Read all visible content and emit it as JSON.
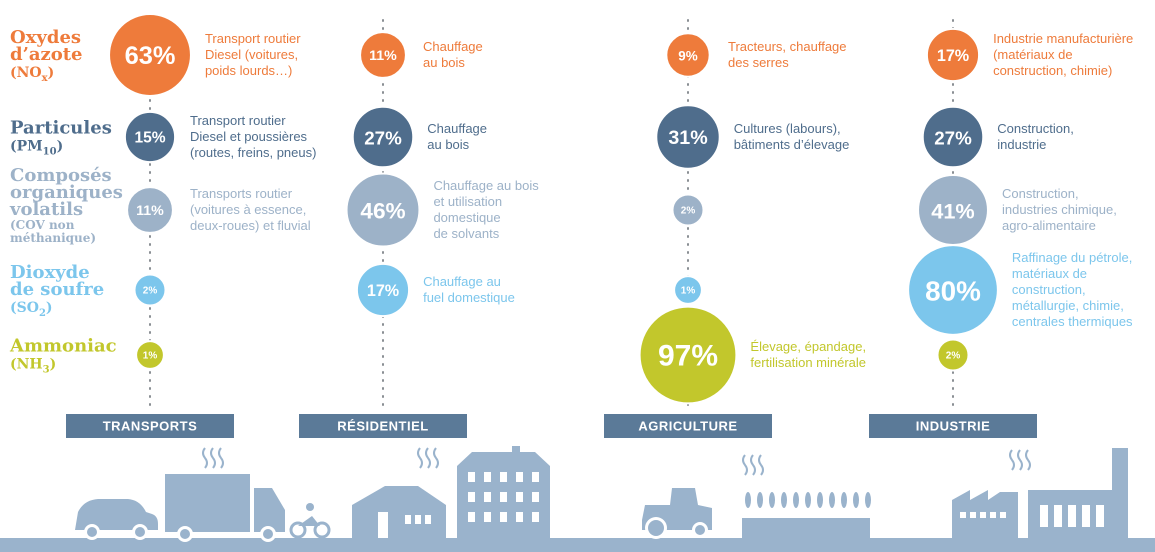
{
  "rows": [
    {
      "name_lines": [
        "Oxydes",
        "d’azote"
      ],
      "formula": {
        "prefix": "(NO",
        "sub": "x",
        "suffix": ")"
      },
      "color": "#ee7b3b"
    },
    {
      "name_lines": [
        "Particules"
      ],
      "formula": {
        "prefix": "(PM",
        "sub": "10",
        "suffix": ")"
      },
      "color": "#4f6d8c"
    },
    {
      "name_lines": [
        "Composés",
        "organiques",
        "volatils"
      ],
      "note_lines": [
        "(COV non",
        "méthanique)"
      ],
      "color": "#9db2c8"
    },
    {
      "name_lines": [
        "Dioxyde",
        "de soufre"
      ],
      "formula": {
        "prefix": "(SO",
        "sub": "2",
        "suffix": ")"
      },
      "color": "#7cc6ec"
    },
    {
      "name_lines": [
        "Ammoniac"
      ],
      "formula": {
        "prefix": "(NH",
        "sub": "3",
        "suffix": ")"
      },
      "color": "#c2c72c"
    }
  ],
  "sectors": [
    {
      "name": "TRANSPORTS",
      "cells": [
        {
          "value": 63,
          "label": "63%",
          "text": [
            "Transport routier",
            "Diesel (voitures,",
            "poids lourds…)"
          ]
        },
        {
          "value": 15,
          "label": "15%",
          "text": [
            "Transport routier",
            "Diesel et poussières",
            "(routes, freins, pneus)"
          ]
        },
        {
          "value": 11,
          "label": "11%",
          "text": [
            "Transports routier",
            "(voitures à essence,",
            "deux-roues) et fluvial"
          ]
        },
        {
          "value": 2,
          "label": "2%"
        },
        {
          "value": 1,
          "label": "1%"
        }
      ]
    },
    {
      "name": "RÉSIDENTIEL",
      "cells": [
        {
          "value": 11,
          "label": "11%",
          "text": [
            "Chauffage",
            "au bois"
          ]
        },
        {
          "value": 27,
          "label": "27%",
          "text": [
            "Chauffage",
            "au bois"
          ]
        },
        {
          "value": 46,
          "label": "46%",
          "text": [
            "Chauffage au bois",
            "et utilisation",
            "domestique",
            "de solvants"
          ]
        },
        {
          "value": 17,
          "label": "17%",
          "text": [
            "Chauffage au",
            "fuel domestique"
          ]
        },
        null
      ]
    },
    {
      "name": "AGRICULTURE",
      "cells": [
        {
          "value": 9,
          "label": "9%",
          "text": [
            "Tracteurs, chauffage",
            "des serres"
          ]
        },
        {
          "value": 31,
          "label": "31%",
          "text": [
            "Cultures (labours),",
            "bâtiments d’élevage"
          ]
        },
        {
          "value": 2,
          "label": "2%"
        },
        {
          "value": 1,
          "label": "1%"
        },
        {
          "value": 97,
          "label": "97%",
          "text": [
            "Élevage, épandage,",
            "fertilisation minérale"
          ]
        }
      ]
    },
    {
      "name": "INDUSTRIE",
      "cells": [
        {
          "value": 17,
          "label": "17%",
          "text": [
            "Industrie manufacturière",
            "(matériaux de",
            "construction, chimie)"
          ]
        },
        {
          "value": 27,
          "label": "27%",
          "text": [
            "Construction,",
            "industrie"
          ]
        },
        {
          "value": 41,
          "label": "41%",
          "text": [
            "Construction,",
            "industries chimique,",
            "agro-alimentaire"
          ]
        },
        {
          "value": 80,
          "label": "80%",
          "text": [
            "Raffinage du pétrole,",
            "matériaux de",
            "construction,",
            "métallurgie, chimie,",
            "centrales thermiques"
          ]
        },
        {
          "value": 2,
          "label": "2%"
        }
      ]
    }
  ]
}
